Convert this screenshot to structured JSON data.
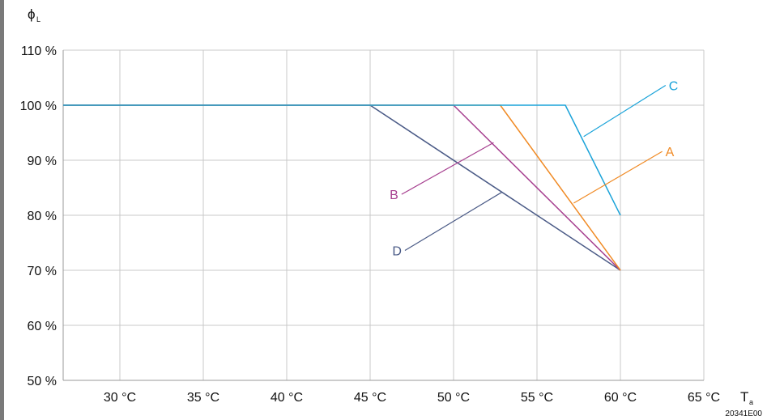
{
  "figure_code": "20341E00",
  "chart_data": {
    "type": "line",
    "title": "",
    "ylabel": "ϕ",
    "ylabel_subscript": "L",
    "xlabel": "T",
    "xlabel_subscript": "a",
    "xlim": [
      26.6,
      65
    ],
    "ylim": [
      50,
      110
    ],
    "x_ticks": [
      30,
      35,
      40,
      45,
      50,
      55,
      60,
      65
    ],
    "x_tick_labels": [
      "30 °C",
      "35 °C",
      "40 °C",
      "45 °C",
      "50 °C",
      "55 °C",
      "60 °C",
      "65 °C"
    ],
    "y_ticks": [
      50,
      60,
      70,
      80,
      90,
      100,
      110
    ],
    "y_tick_labels": [
      "50 %",
      "60 %",
      "70 %",
      "80 %",
      "90 %",
      "100 %",
      "110 %"
    ],
    "grid": true,
    "legend": "none (series labelled by callouts)",
    "series": [
      {
        "name": "A",
        "color": "#f08a24",
        "x": [
          26.6,
          52.8,
          60
        ],
        "y": [
          100,
          100,
          70
        ],
        "label_anchor": [
          57.2,
          82.2
        ],
        "label_pos": [
          62.8,
          91.6
        ]
      },
      {
        "name": "B",
        "color": "#a63f8f",
        "x": [
          26.6,
          50,
          60
        ],
        "y": [
          100,
          100,
          70
        ],
        "label_anchor": [
          52.4,
          93.2
        ],
        "label_pos": [
          46.4,
          83.8
        ]
      },
      {
        "name": "C",
        "color": "#1aa3d9",
        "x": [
          26.6,
          56.7,
          60
        ],
        "y": [
          100,
          100,
          80
        ],
        "label_anchor": [
          57.8,
          94.3
        ],
        "label_pos": [
          63.0,
          103.6
        ]
      },
      {
        "name": "D",
        "color": "#4a5a86",
        "x": [
          26.6,
          45,
          60
        ],
        "y": [
          100,
          100,
          70
        ],
        "label_anchor": [
          52.9,
          84.2
        ],
        "label_pos": [
          46.6,
          73.6
        ]
      }
    ]
  }
}
